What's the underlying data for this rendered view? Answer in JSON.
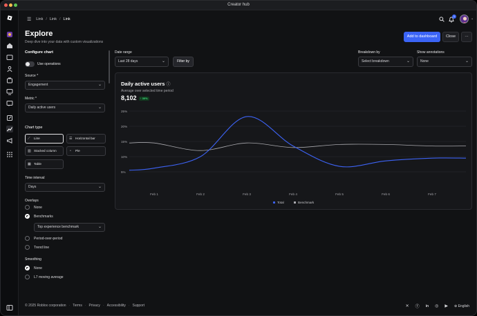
{
  "window": {
    "title": "Creator hub"
  },
  "breadcrumb": {
    "items": [
      "Link",
      "Link",
      "Link"
    ]
  },
  "header": {
    "title": "Explore",
    "subtitle": "Deep dive into your data with custom visualizations",
    "add_button": "Add to dashboard",
    "close_button": "Close",
    "more_button": "···",
    "notification_count": "1"
  },
  "config": {
    "title": "Configure chart",
    "use_operations": "Use operations",
    "source_label": "Source *",
    "source_value": "Engagement",
    "metric_label": "Metric *",
    "metric_value": "Daily active users",
    "chart_type_label": "Chart type",
    "chart_types": [
      "Line",
      "Horizontal bar",
      "Stacked column",
      "Pie",
      "Table"
    ],
    "time_interval_label": "Time interval",
    "time_interval_value": "Days",
    "overlays_label": "Overlays",
    "overlay_none": "None",
    "overlay_benchmarks": "Benchmarks",
    "benchmark_select": "Top experience benchmark",
    "overlay_pop": "Period-over-period",
    "overlay_trend": "Trend line",
    "smoothing_label": "Smoothing",
    "smoothing_none": "None",
    "smoothing_l7": "L7 moving average"
  },
  "filters": {
    "date_range_label": "Date range",
    "date_range_value": "Last 28 days",
    "filter_button": "Filter by",
    "breakdown_label": "Breakdown by",
    "breakdown_value": "Select breakdown",
    "annotations_label": "Show annotations",
    "annotations_value": "None"
  },
  "metric_card": {
    "title": "Daily active users",
    "caption": "Average over selected time period",
    "value": "8,102",
    "delta": "↑ 30%"
  },
  "chart_data": {
    "type": "line",
    "x": [
      "Feb 1",
      "Feb 2",
      "Feb 3",
      "Feb 4",
      "Feb 5",
      "Feb 6",
      "Feb 7"
    ],
    "y_ticks": [
      "25%",
      "20%",
      "15%",
      "10%",
      "5%"
    ],
    "ylim": [
      0,
      25
    ],
    "series": [
      {
        "name": "Total",
        "color": "#3d63f5",
        "values": [
          6.2,
          10,
          23.2,
          13.5,
          6.8,
          8.6,
          9.5
        ]
      },
      {
        "name": "Benchmark",
        "color": "#a9a9ae",
        "values": [
          14.5,
          12,
          14.5,
          13,
          14,
          14,
          13.5
        ]
      }
    ],
    "legend": "bottom-center",
    "grid": true
  },
  "footer": {
    "copyright": "© 2025 Roblox corporation",
    "links": [
      "Terms",
      "Privacy",
      "Accessibility",
      "Support"
    ],
    "language": "English"
  }
}
